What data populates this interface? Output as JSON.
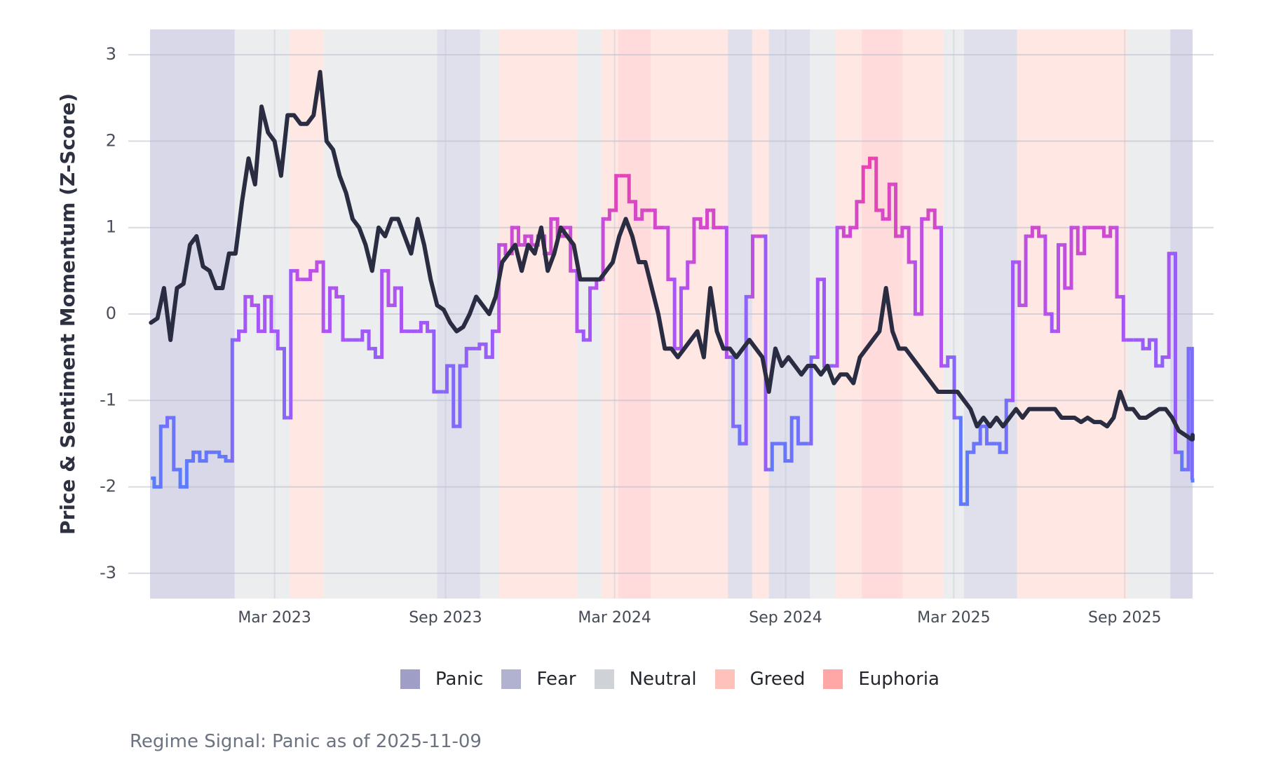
{
  "chart_data": {
    "type": "line",
    "title": "",
    "ylabel": "Price & Sentiment Momentum (Z-Score)",
    "xlabel": "",
    "ylim": [
      -3.3,
      3.3
    ],
    "xlim": [
      "2022-10-18",
      "2025-11-13"
    ],
    "yticks": [
      3,
      2,
      1,
      0,
      -1,
      -2,
      -3
    ],
    "ytick_labels": [
      "3",
      "2",
      "1",
      "0",
      "-1",
      "-2",
      "-3"
    ],
    "xticks": [
      {
        "date": "2023-03-01",
        "label": "Mar 2023"
      },
      {
        "date": "2023-09-01",
        "label": "Sep 2023"
      },
      {
        "date": "2024-03-01",
        "label": "Mar 2024"
      },
      {
        "date": "2024-09-01",
        "label": "Sep 2024"
      },
      {
        "date": "2025-03-01",
        "label": "Mar 2025"
      },
      {
        "date": "2025-09-01",
        "label": "Sep 2025"
      }
    ],
    "grid": true,
    "legend_position": "bottom-center",
    "legend": [
      {
        "name": "Panic",
        "color": "#9e9ec6"
      },
      {
        "name": "Fear",
        "color": "#b1b1d0"
      },
      {
        "name": "Neutral",
        "color": "#cfd3d8"
      },
      {
        "name": "Greed",
        "color": "#ffc2ba"
      },
      {
        "name": "Euphoria",
        "color": "#ffa6a6"
      }
    ],
    "regimes": [
      [
        "2022-10-18",
        "2023-01-17",
        "Panic"
      ],
      [
        "2023-01-17",
        "2023-03-17",
        "Neutral"
      ],
      [
        "2023-03-17",
        "2023-04-23",
        "Greed"
      ],
      [
        "2023-04-23",
        "2023-08-23",
        "Neutral"
      ],
      [
        "2023-08-23",
        "2023-10-08",
        "Fear"
      ],
      [
        "2023-10-08",
        "2023-10-28",
        "Neutral"
      ],
      [
        "2023-10-28",
        "2024-01-21",
        "Greed"
      ],
      [
        "2024-01-21",
        "2024-02-16",
        "Neutral"
      ],
      [
        "2024-02-16",
        "2024-03-05",
        "Greed"
      ],
      [
        "2024-03-05",
        "2024-04-09",
        "Euphoria"
      ],
      [
        "2024-04-09",
        "2024-05-09",
        "Greed"
      ],
      [
        "2024-05-09",
        "2024-07-01",
        "Greed"
      ],
      [
        "2024-07-01",
        "2024-07-27",
        "Fear"
      ],
      [
        "2024-07-27",
        "2024-08-14",
        "Greed"
      ],
      [
        "2024-08-14",
        "2024-09-27",
        "Fear"
      ],
      [
        "2024-09-27",
        "2024-10-25",
        "Neutral"
      ],
      [
        "2024-10-25",
        "2024-11-22",
        "Greed"
      ],
      [
        "2024-11-22",
        "2025-01-05",
        "Euphoria"
      ],
      [
        "2025-01-05",
        "2025-02-18",
        "Greed"
      ],
      [
        "2025-02-18",
        "2025-03-12",
        "Neutral"
      ],
      [
        "2025-03-12",
        "2025-05-08",
        "Fear"
      ],
      [
        "2025-05-08",
        "2025-09-03",
        "Greed"
      ],
      [
        "2025-09-03",
        "2025-10-20",
        "Neutral"
      ],
      [
        "2025-10-20",
        "2025-11-13",
        "Panic"
      ]
    ],
    "series_start": "2022-10-19",
    "series_step_days": 7,
    "series": [
      {
        "name": "Price Momentum",
        "color": "#2a2d42",
        "values": [
          -0.1,
          -0.05,
          0.3,
          -0.3,
          0.3,
          0.35,
          0.8,
          0.9,
          0.55,
          0.5,
          0.3,
          0.3,
          0.7,
          0.7,
          1.3,
          1.8,
          1.5,
          2.4,
          2.1,
          2.0,
          1.6,
          2.3,
          2.3,
          2.2,
          2.2,
          2.3,
          2.8,
          2.0,
          1.9,
          1.6,
          1.4,
          1.1,
          1.0,
          0.8,
          0.5,
          1.0,
          0.9,
          1.1,
          1.1,
          0.9,
          0.7,
          1.1,
          0.8,
          0.4,
          0.1,
          0.05,
          -0.1,
          -0.2,
          -0.15,
          0.0,
          0.2,
          0.1,
          0.0,
          0.2,
          0.6,
          0.7,
          0.8,
          0.5,
          0.8,
          0.7,
          1.0,
          0.5,
          0.7,
          1.0,
          0.9,
          0.8,
          0.4,
          0.4,
          0.4,
          0.4,
          0.5,
          0.6,
          0.9,
          1.1,
          0.9,
          0.6,
          0.6,
          0.3,
          0.0,
          -0.4,
          -0.4,
          -0.5,
          -0.4,
          -0.3,
          -0.2,
          -0.5,
          0.3,
          -0.2,
          -0.4,
          -0.4,
          -0.5,
          -0.4,
          -0.3,
          -0.4,
          -0.5,
          -0.9,
          -0.4,
          -0.6,
          -0.5,
          -0.6,
          -0.7,
          -0.6,
          -0.6,
          -0.7,
          -0.6,
          -0.8,
          -0.7,
          -0.7,
          -0.8,
          -0.5,
          -0.4,
          -0.3,
          -0.2,
          0.3,
          -0.2,
          -0.4,
          -0.4,
          -0.5,
          -0.6,
          -0.7,
          -0.8,
          -0.9,
          -0.9,
          -0.9,
          -0.9,
          -1.0,
          -1.1,
          -1.3,
          -1.2,
          -1.3,
          -1.2,
          -1.3,
          -1.2,
          -1.1,
          -1.2,
          -1.1,
          -1.1,
          -1.1,
          -1.1,
          -1.1,
          -1.2,
          -1.2,
          -1.2,
          -1.25,
          -1.2,
          -1.25,
          -1.25,
          -1.3,
          -1.2,
          -0.9,
          -1.1,
          -1.1,
          -1.2,
          -1.2,
          -1.15,
          -1.1,
          -1.1,
          -1.2,
          -1.35,
          -1.4,
          -1.45,
          -1.45,
          -1.4
        ]
      },
      {
        "name": "Sentiment Momentum",
        "color_low": "#3d8bff",
        "color_mid": "#a855f7",
        "color_high": "#ff3d9a",
        "values": [
          -1.9,
          -2.0,
          -1.3,
          -1.2,
          -1.8,
          -2.0,
          -1.7,
          -1.6,
          -1.7,
          -1.6,
          -1.6,
          -1.65,
          -1.7,
          -0.3,
          -0.2,
          0.2,
          0.1,
          -0.2,
          0.2,
          -0.2,
          -0.4,
          -1.2,
          0.5,
          0.4,
          0.4,
          0.5,
          0.6,
          -0.2,
          0.3,
          0.2,
          -0.3,
          -0.3,
          -0.3,
          -0.2,
          -0.4,
          -0.5,
          0.5,
          0.1,
          0.3,
          -0.2,
          -0.2,
          -0.2,
          -0.1,
          -0.2,
          -0.9,
          -0.9,
          -0.6,
          -1.3,
          -0.6,
          -0.4,
          -0.4,
          -0.35,
          -0.5,
          -0.2,
          0.8,
          0.7,
          1.0,
          0.8,
          0.9,
          0.8,
          0.9,
          0.7,
          1.1,
          0.9,
          1.0,
          0.5,
          -0.2,
          -0.3,
          0.3,
          0.4,
          1.1,
          1.2,
          1.6,
          1.6,
          1.3,
          1.1,
          1.2,
          1.2,
          1.0,
          1.0,
          0.4,
          -0.4,
          0.3,
          0.6,
          1.1,
          1.0,
          1.2,
          1.0,
          1.0,
          -0.5,
          -1.3,
          -1.5,
          0.2,
          0.9,
          0.9,
          -1.8,
          -1.5,
          -1.5,
          -1.7,
          -1.2,
          -1.5,
          -1.5,
          -0.5,
          0.4,
          -0.6,
          -0.6,
          1.0,
          0.9,
          1.0,
          1.3,
          1.7,
          1.8,
          1.2,
          1.1,
          1.5,
          0.9,
          1.0,
          0.6,
          0.0,
          1.1,
          1.2,
          1.0,
          -0.6,
          -0.5,
          -1.2,
          -2.2,
          -1.6,
          -1.5,
          -1.3,
          -1.5,
          -1.5,
          -1.6,
          -1.0,
          0.6,
          0.1,
          0.9,
          1.0,
          0.9,
          0.0,
          -0.2,
          0.8,
          0.3,
          1.0,
          0.7,
          1.0,
          1.0,
          1.0,
          0.9,
          1.0,
          0.2,
          -0.3,
          -0.3,
          -0.3,
          -0.4,
          -0.3,
          -0.6,
          -0.5,
          0.7,
          -1.6,
          -1.8,
          -0.4,
          -1.9,
          -1.95
        ]
      }
    ]
  },
  "caption": "Regime Signal: Panic as of 2025-11-09"
}
